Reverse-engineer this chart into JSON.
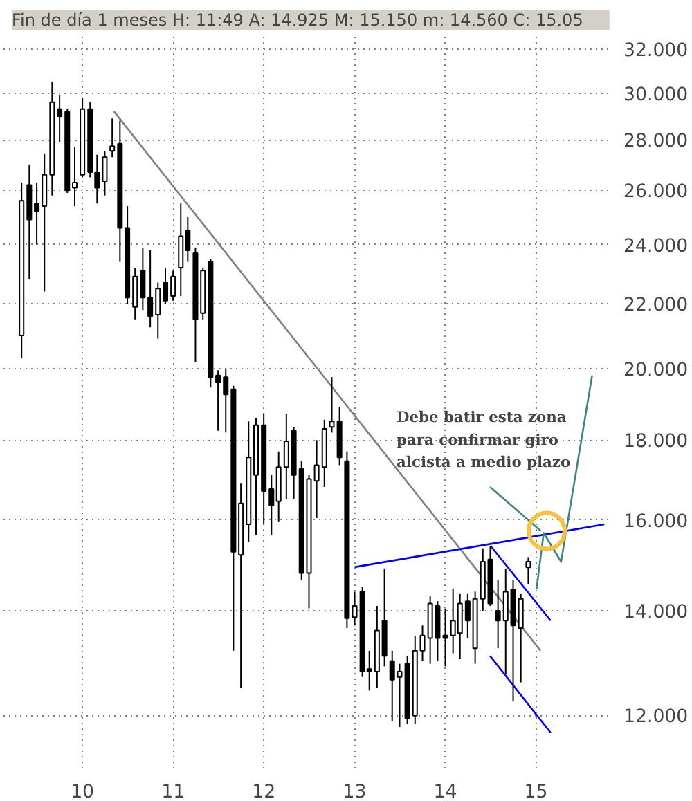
{
  "chart_data": {
    "type": "candlestick",
    "title": "Fin de día 1 meses  H: 11:49  A: 14.925  M: 15.150  m: 14.560  C: 15.05",
    "x": [
      "2009-05",
      "2009-06",
      "2009-07",
      "2009-08",
      "2009-09",
      "2009-10",
      "2009-11",
      "2009-12",
      "2010-01",
      "2010-02",
      "2010-03",
      "2010-04",
      "2010-05",
      "2010-06",
      "2010-07",
      "2010-08",
      "2010-09",
      "2010-10",
      "2010-11",
      "2010-12",
      "2011-01",
      "2011-02",
      "2011-03",
      "2011-04",
      "2011-05",
      "2011-06",
      "2011-07",
      "2011-08",
      "2011-09",
      "2011-10",
      "2011-11",
      "2011-12",
      "2012-01",
      "2012-02",
      "2012-03",
      "2012-04",
      "2012-05",
      "2012-06",
      "2012-07",
      "2012-08",
      "2012-09",
      "2012-10",
      "2012-11",
      "2012-12",
      "2013-01",
      "2013-02",
      "2013-03",
      "2013-04",
      "2013-05",
      "2013-06",
      "2013-07",
      "2013-08",
      "2013-09",
      "2013-10",
      "2013-11",
      "2013-12",
      "2014-01",
      "2014-02",
      "2014-03",
      "2014-04",
      "2014-05",
      "2014-06",
      "2014-07",
      "2014-08",
      "2014-09",
      "2014-10",
      "2014-11",
      "2014-12"
    ],
    "ohlc": [
      [
        21.0,
        26.3,
        20.3,
        25.6
      ],
      [
        26.2,
        27.0,
        22.8,
        24.9
      ],
      [
        25.5,
        26.3,
        24.0,
        25.2
      ],
      [
        25.4,
        27.45,
        22.4,
        26.6
      ],
      [
        26.6,
        30.5,
        25.8,
        29.6
      ],
      [
        29.3,
        29.9,
        27.9,
        29.0
      ],
      [
        29.2,
        29.3,
        25.9,
        26.0
      ],
      [
        26.1,
        27.7,
        25.4,
        26.3
      ],
      [
        26.6,
        29.8,
        26.5,
        29.3
      ],
      [
        29.3,
        29.6,
        26.5,
        26.7
      ],
      [
        26.7,
        27.4,
        25.5,
        26.1
      ],
      [
        26.35,
        27.55,
        25.8,
        27.3
      ],
      [
        27.55,
        28.9,
        27.3,
        27.75
      ],
      [
        27.85,
        28.8,
        23.4,
        24.6
      ],
      [
        24.6,
        25.4,
        22.0,
        22.2
      ],
      [
        21.9,
        23.2,
        21.5,
        22.9
      ],
      [
        23.1,
        23.9,
        21.8,
        22.2
      ],
      [
        22.2,
        23.8,
        21.25,
        21.6
      ],
      [
        21.65,
        22.7,
        20.9,
        22.5
      ],
      [
        22.7,
        23.2,
        22.0,
        22.1
      ],
      [
        22.25,
        23.1,
        22.1,
        22.9
      ],
      [
        23.2,
        25.5,
        22.25,
        24.3
      ],
      [
        24.5,
        25.0,
        23.4,
        23.8
      ],
      [
        23.7,
        23.9,
        20.2,
        21.5
      ],
      [
        21.7,
        23.2,
        21.5,
        23.1
      ],
      [
        23.4,
        23.5,
        19.45,
        19.75
      ],
      [
        19.8,
        19.95,
        18.25,
        19.6
      ],
      [
        19.75,
        20.0,
        18.2,
        19.25
      ],
      [
        19.4,
        19.5,
        13.2,
        15.27
      ],
      [
        15.2,
        16.9,
        12.5,
        16.4
      ],
      [
        15.9,
        18.5,
        15.5,
        17.55
      ],
      [
        17.1,
        18.6,
        15.65,
        18.4
      ],
      [
        18.4,
        18.7,
        15.9,
        16.7
      ],
      [
        16.75,
        17.1,
        15.65,
        16.35
      ],
      [
        16.45,
        17.7,
        15.97,
        17.3
      ],
      [
        17.3,
        18.7,
        16.5,
        17.97
      ],
      [
        18.25,
        18.35,
        16.5,
        17.1
      ],
      [
        17.25,
        17.45,
        14.65,
        14.8
      ],
      [
        14.8,
        17.1,
        14.05,
        17.0
      ],
      [
        16.95,
        18.0,
        16.05,
        17.35
      ],
      [
        17.3,
        18.55,
        16.8,
        18.3
      ],
      [
        18.35,
        19.75,
        18.2,
        18.5
      ],
      [
        18.5,
        18.9,
        17.35,
        17.55
      ],
      [
        17.45,
        17.7,
        13.65,
        13.85
      ],
      [
        13.87,
        14.4,
        13.7,
        14.1
      ],
      [
        14.4,
        14.5,
        12.7,
        12.8
      ],
      [
        12.85,
        13.2,
        12.45,
        12.8
      ],
      [
        12.8,
        14.1,
        12.5,
        13.6
      ],
      [
        13.8,
        14.9,
        12.9,
        13.1
      ],
      [
        13.0,
        13.2,
        11.9,
        12.65
      ],
      [
        12.7,
        12.95,
        11.8,
        12.8
      ],
      [
        12.95,
        13.1,
        11.85,
        11.95
      ],
      [
        12.0,
        13.5,
        11.85,
        13.2
      ],
      [
        13.2,
        13.7,
        13.0,
        13.5
      ],
      [
        13.45,
        14.3,
        12.95,
        14.15
      ],
      [
        14.1,
        14.2,
        13.0,
        13.45
      ],
      [
        13.5,
        14.05,
        12.9,
        13.45
      ],
      [
        13.5,
        14.45,
        13.15,
        13.8
      ],
      [
        13.55,
        14.35,
        13.05,
        14.15
      ],
      [
        14.2,
        14.35,
        13.45,
        13.8
      ],
      [
        13.25,
        14.4,
        12.95,
        14.25
      ],
      [
        14.25,
        15.35,
        14.0,
        15.05
      ],
      [
        15.1,
        15.4,
        14.1,
        14.15
      ],
      [
        14.0,
        14.65,
        13.25,
        13.8
      ],
      [
        13.8,
        14.9,
        12.75,
        14.4
      ],
      [
        14.45,
        14.65,
        12.25,
        13.7
      ],
      [
        13.65,
        14.35,
        12.6,
        14.25
      ],
      [
        14.925,
        15.15,
        14.56,
        15.05
      ]
    ],
    "series": [
      {
        "type": "line",
        "color": "#808080",
        "x": [
          "2010-05-08",
          "2015-01-20"
        ],
        "values": [
          29.2,
          13.2
        ]
      },
      {
        "type": "line",
        "color": "#0000ff",
        "x": [
          "2013-01-01",
          "2015-10-03"
        ],
        "values": [
          14.93,
          15.9
        ]
      },
      {
        "type": "line",
        "color": "#0000ff",
        "x": [
          "2014-07-03",
          "2015-03-01"
        ],
        "values": [
          15.4,
          13.8
        ]
      },
      {
        "type": "line",
        "color": "#0000ff",
        "x": [
          "2014-06-30",
          "2015-03-01"
        ],
        "values": [
          13.1,
          11.7
        ]
      },
      {
        "type": "line",
        "color": "#3a8585",
        "x": [
          "2014-06-30",
          "2015-01-20"
        ],
        "values": [
          16.8,
          15.75
        ]
      },
      {
        "type": "line",
        "color": "#3a8585",
        "x": [
          "2015-01-03",
          "2015-02-01",
          "2015-04-12",
          "2015-08-15"
        ],
        "values": [
          14.45,
          15.7,
          15.05,
          19.8
        ]
      },
      {
        "type": "scatter",
        "color": "#f5c242",
        "x": [
          "2015-02-13"
        ],
        "values": [
          15.75
        ]
      }
    ],
    "annotations": [
      "Debe batir esta zona\npara confirmar giro\nalcista a medio plazo"
    ],
    "log": true,
    "grid": true,
    "xlim": [
      "2009-02-17",
      "2015-10-19"
    ],
    "xticks": [
      {
        "value": "2010-01",
        "label": "10"
      },
      {
        "value": "2011-01",
        "label": "11"
      },
      {
        "value": "2012-01",
        "label": "12"
      },
      {
        "value": "2013-01",
        "label": "13"
      },
      {
        "value": "2014-01",
        "label": "14"
      },
      {
        "value": "2015-01",
        "label": "15"
      }
    ],
    "ylim": [
      11.1,
      32.6
    ],
    "yticks": [
      {
        "value": 12,
        "label": "12.000"
      },
      {
        "value": 14,
        "label": "14.000"
      },
      {
        "value": 16,
        "label": "16.000"
      },
      {
        "value": 18,
        "label": "18.000"
      },
      {
        "value": 20,
        "label": "20.000"
      },
      {
        "value": 22,
        "label": "22.000"
      },
      {
        "value": 24,
        "label": "24.000"
      },
      {
        "value": 26,
        "label": "26.000"
      },
      {
        "value": 28,
        "label": "28.000"
      },
      {
        "value": 30,
        "label": "30.000"
      },
      {
        "value": 32,
        "label": "32.000"
      }
    ]
  }
}
